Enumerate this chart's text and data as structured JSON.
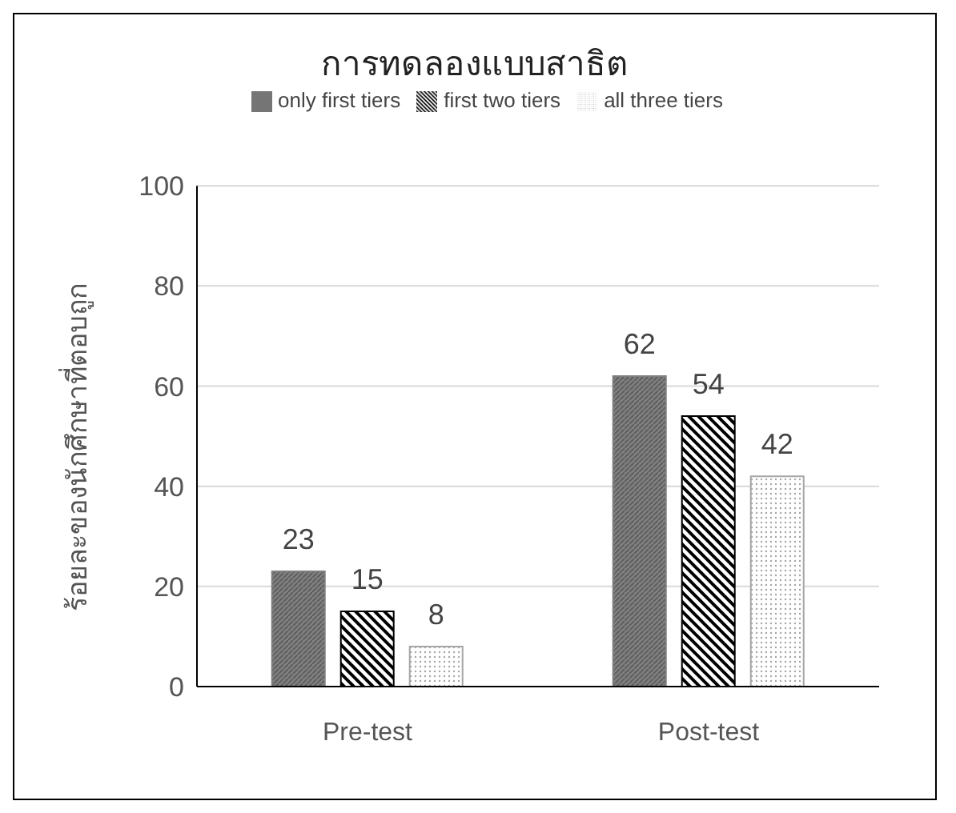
{
  "chart_data": {
    "type": "bar",
    "title": "การทดลองแบบสาธิต",
    "ylabel": "ร้อยละของนักศึกษาที่ตอบถูก",
    "categories": [
      "Pre-test",
      "Post-test"
    ],
    "series": [
      {
        "name": "only first tiers",
        "color": "#7f7f7f",
        "values": [
          23,
          62
        ]
      },
      {
        "name": "first two tiers",
        "color": "#000000",
        "values": [
          15,
          54
        ]
      },
      {
        "name": "all three tiers",
        "color": "#a6a6a6",
        "values": [
          8,
          42
        ]
      }
    ],
    "ylim": [
      0,
      100
    ],
    "yticks": [
      0,
      20,
      40,
      60,
      80,
      100
    ],
    "grid": "y",
    "legend": "top",
    "data_labels": true
  }
}
